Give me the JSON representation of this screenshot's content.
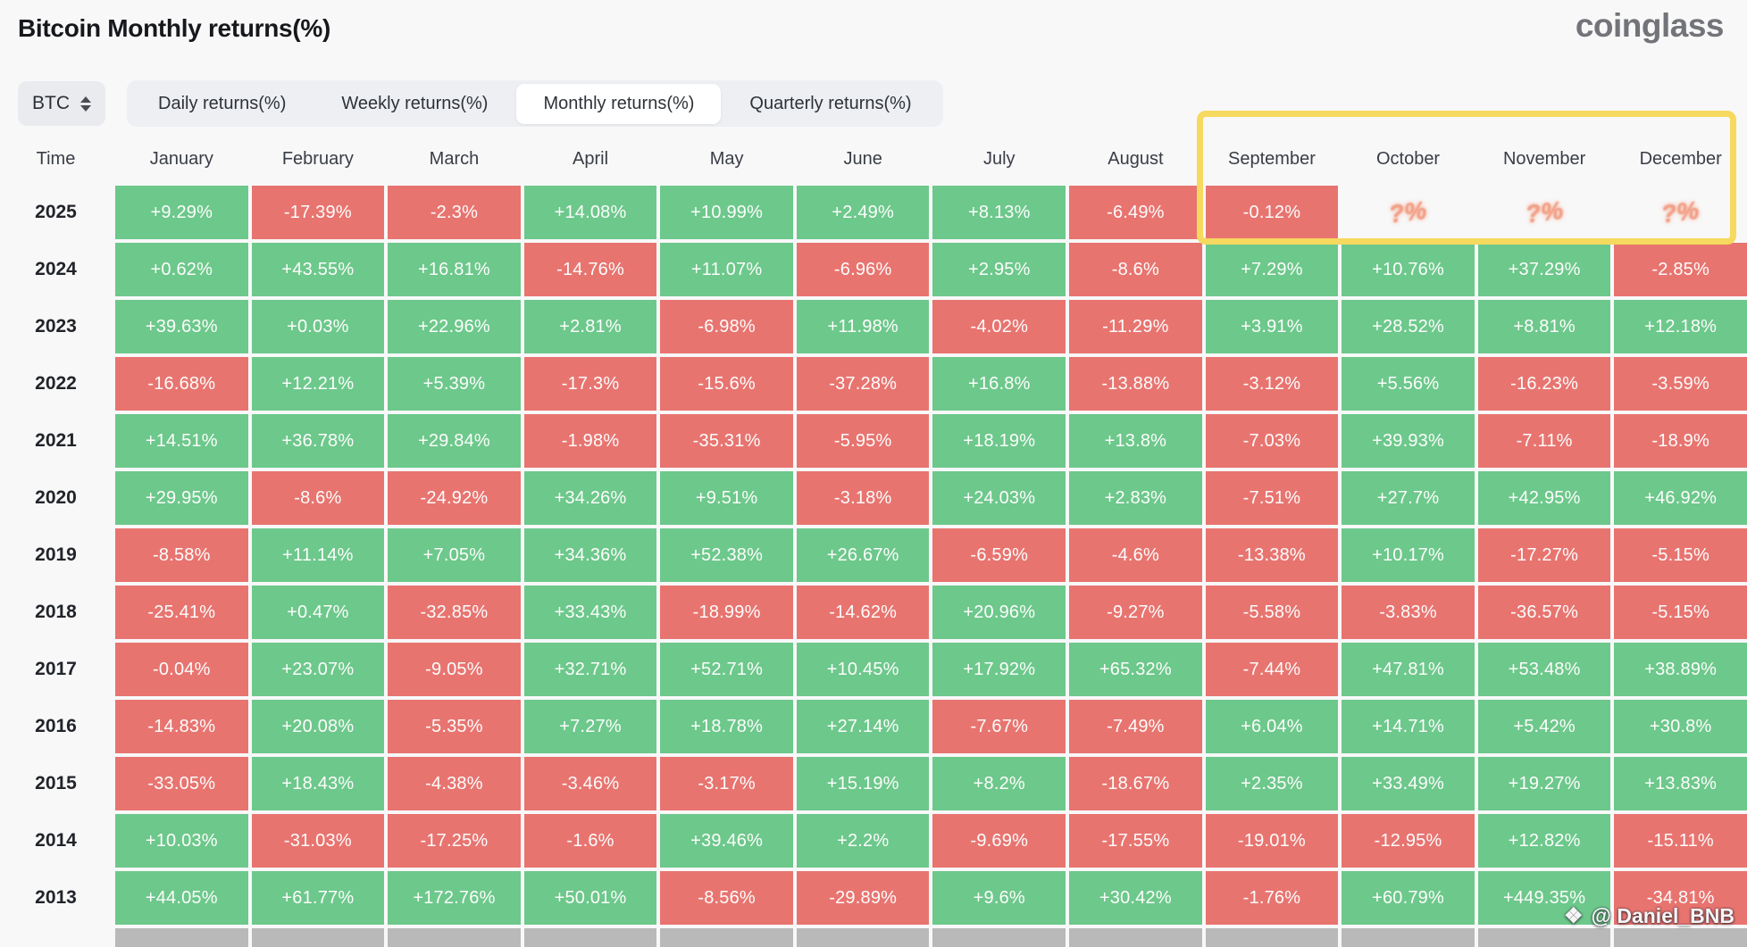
{
  "title": "Bitcoin Monthly returns(%)",
  "logo": "coinglass",
  "controls": {
    "symbol": "BTC",
    "tabs": [
      {
        "label": "Daily returns(%)",
        "active": false
      },
      {
        "label": "Weekly returns(%)",
        "active": false
      },
      {
        "label": "Monthly returns(%)",
        "active": true
      },
      {
        "label": "Quarterly returns(%)",
        "active": false
      }
    ]
  },
  "colors": {
    "positive": "#6dc88b",
    "negative": "#e87470",
    "highlight_border": "#f6d95f",
    "pending_gray": "#b9b9ba",
    "unknown_mark": "#f2a189"
  },
  "table": {
    "time_header": "Time",
    "months": [
      "January",
      "February",
      "March",
      "April",
      "May",
      "June",
      "July",
      "August",
      "September",
      "October",
      "November",
      "December"
    ],
    "unknown_value": "?%",
    "rows": [
      {
        "year": "2025",
        "values": [
          "+9.29%",
          "-17.39%",
          "-2.3%",
          "+14.08%",
          "+10.99%",
          "+2.49%",
          "+8.13%",
          "-6.49%",
          "-0.12%",
          "?%",
          "?%",
          "?%"
        ]
      },
      {
        "year": "2024",
        "values": [
          "+0.62%",
          "+43.55%",
          "+16.81%",
          "-14.76%",
          "+11.07%",
          "-6.96%",
          "+2.95%",
          "-8.6%",
          "+7.29%",
          "+10.76%",
          "+37.29%",
          "-2.85%"
        ]
      },
      {
        "year": "2023",
        "values": [
          "+39.63%",
          "+0.03%",
          "+22.96%",
          "+2.81%",
          "-6.98%",
          "+11.98%",
          "-4.02%",
          "-11.29%",
          "+3.91%",
          "+28.52%",
          "+8.81%",
          "+12.18%"
        ]
      },
      {
        "year": "2022",
        "values": [
          "-16.68%",
          "+12.21%",
          "+5.39%",
          "-17.3%",
          "-15.6%",
          "-37.28%",
          "+16.8%",
          "-13.88%",
          "-3.12%",
          "+5.56%",
          "-16.23%",
          "-3.59%"
        ]
      },
      {
        "year": "2021",
        "values": [
          "+14.51%",
          "+36.78%",
          "+29.84%",
          "-1.98%",
          "-35.31%",
          "-5.95%",
          "+18.19%",
          "+13.8%",
          "-7.03%",
          "+39.93%",
          "-7.11%",
          "-18.9%"
        ]
      },
      {
        "year": "2020",
        "values": [
          "+29.95%",
          "-8.6%",
          "-24.92%",
          "+34.26%",
          "+9.51%",
          "-3.18%",
          "+24.03%",
          "+2.83%",
          "-7.51%",
          "+27.7%",
          "+42.95%",
          "+46.92%"
        ]
      },
      {
        "year": "2019",
        "values": [
          "-8.58%",
          "+11.14%",
          "+7.05%",
          "+34.36%",
          "+52.38%",
          "+26.67%",
          "-6.59%",
          "-4.6%",
          "-13.38%",
          "+10.17%",
          "-17.27%",
          "-5.15%"
        ]
      },
      {
        "year": "2018",
        "values": [
          "-25.41%",
          "+0.47%",
          "-32.85%",
          "+33.43%",
          "-18.99%",
          "-14.62%",
          "+20.96%",
          "-9.27%",
          "-5.58%",
          "-3.83%",
          "-36.57%",
          "-5.15%"
        ]
      },
      {
        "year": "2017",
        "values": [
          "-0.04%",
          "+23.07%",
          "-9.05%",
          "+32.71%",
          "+52.71%",
          "+10.45%",
          "+17.92%",
          "+65.32%",
          "-7.44%",
          "+47.81%",
          "+53.48%",
          "+38.89%"
        ]
      },
      {
        "year": "2016",
        "values": [
          "-14.83%",
          "+20.08%",
          "-5.35%",
          "+7.27%",
          "+18.78%",
          "+27.14%",
          "-7.67%",
          "-7.49%",
          "+6.04%",
          "+14.71%",
          "+5.42%",
          "+30.8%"
        ]
      },
      {
        "year": "2015",
        "values": [
          "-33.05%",
          "+18.43%",
          "-4.38%",
          "-3.46%",
          "-3.17%",
          "+15.19%",
          "+8.2%",
          "-18.67%",
          "+2.35%",
          "+33.49%",
          "+19.27%",
          "+13.83%"
        ]
      },
      {
        "year": "2014",
        "values": [
          "+10.03%",
          "-31.03%",
          "-17.25%",
          "-1.6%",
          "+39.46%",
          "+2.2%",
          "-9.69%",
          "-17.55%",
          "-19.01%",
          "-12.95%",
          "+12.82%",
          "-15.11%"
        ]
      },
      {
        "year": "2013",
        "values": [
          "+44.05%",
          "+61.77%",
          "+172.76%",
          "+50.01%",
          "-8.56%",
          "-29.89%",
          "+9.6%",
          "+30.42%",
          "-1.76%",
          "+60.79%",
          "+449.35%",
          "-34.81%"
        ]
      }
    ],
    "partial_row_cells": 12
  },
  "watermark": "@ Daniel_BNB"
}
